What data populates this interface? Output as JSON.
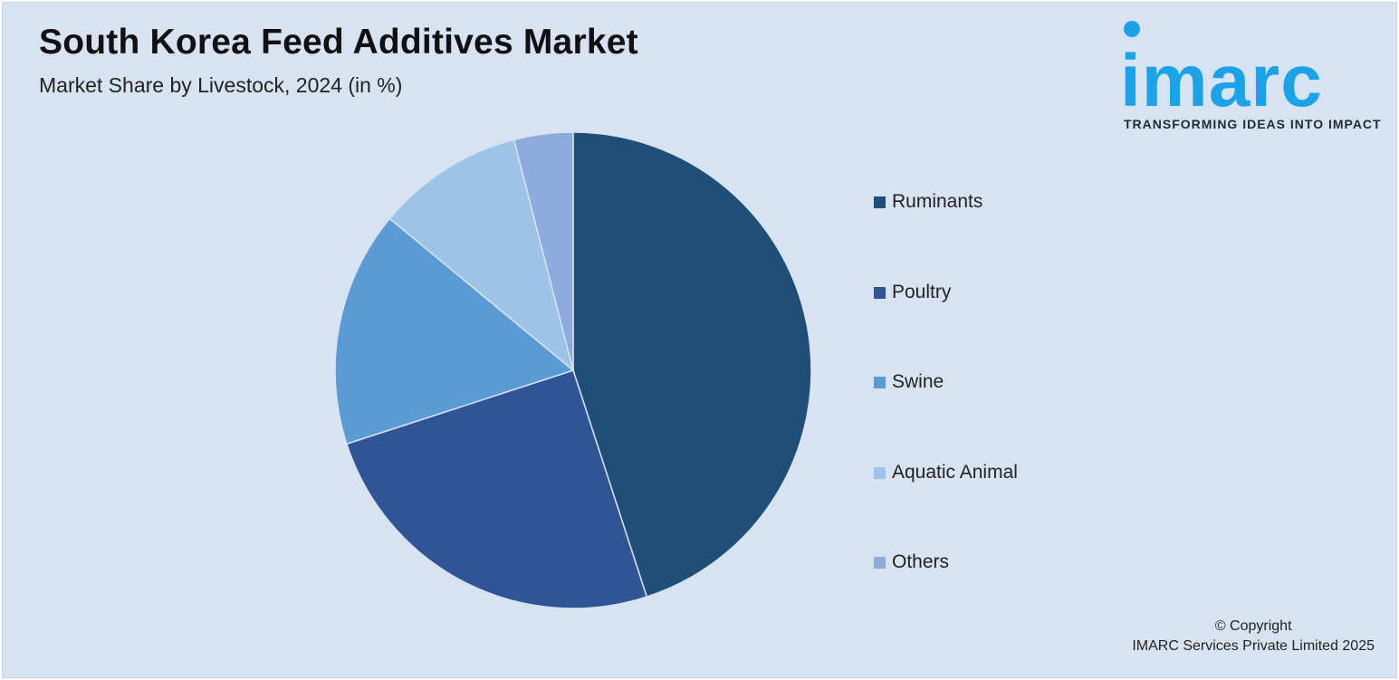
{
  "header": {
    "title": "South Korea Feed Additives Market",
    "subtitle": "Market Share by Livestock, 2024 (in %)"
  },
  "logo": {
    "word": "imarc",
    "tagline": "TRANSFORMING IDEAS INTO IMPACT",
    "color": "#1aa3e8"
  },
  "chart_data": {
    "type": "pie",
    "title": "South Korea Feed Additives Market",
    "subtitle": "Market Share by Livestock, 2024 (in %)",
    "categories": [
      "Ruminants",
      "Poultry",
      "Swine",
      "Aquatic Animal",
      "Others"
    ],
    "values": [
      45,
      25,
      16,
      10,
      4
    ],
    "colors": [
      "#1f4e79",
      "#2f5597",
      "#5b9bd5",
      "#9dc3e6",
      "#8faadc"
    ],
    "legend_position": "right",
    "start_angle_deg": 0,
    "direction": "clockwise"
  },
  "footer": {
    "copyright_line1": "© Copyright",
    "copyright_line2": "IMARC Services Private Limited 2025"
  }
}
